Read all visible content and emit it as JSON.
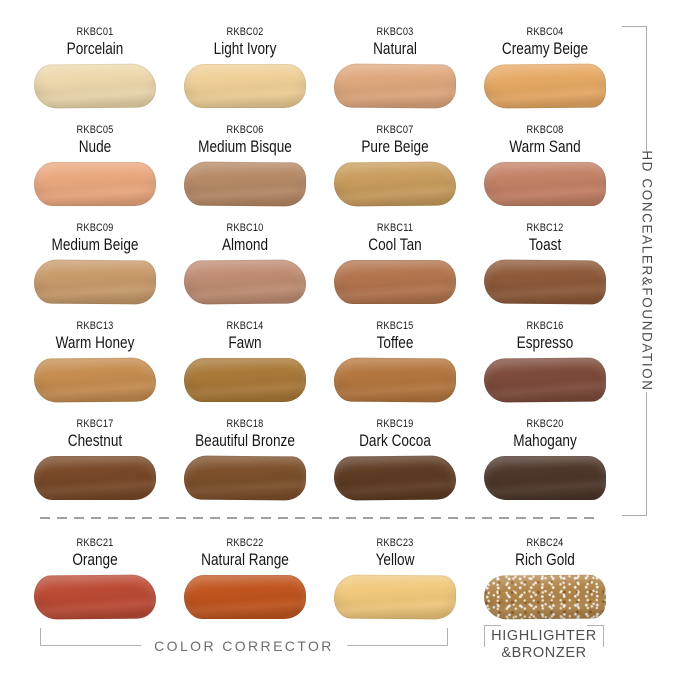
{
  "groups": {
    "right_bracket_label": "HD CONCEALER&FOUNDATION",
    "color_corrector_label": "COLOR CORRECTOR",
    "highlighter_label_line1": "HIGHLIGHTER",
    "highlighter_label_line2": "&BRONZER"
  },
  "colors": {
    "bracket_line": "#ababab",
    "divider_dash": "#a0a0a0",
    "swatch_text": "#1b1b1b",
    "group_text": "#4c4c4c",
    "corrector_text": "#6e6e6e",
    "background": "#ffffff"
  },
  "swatches": [
    {
      "code": "RKBC01",
      "name": "Porcelain",
      "color": "#EDD8AC"
    },
    {
      "code": "RKBC02",
      "name": "Light Ivory",
      "color": "#EFD098"
    },
    {
      "code": "RKBC03",
      "name": "Natural",
      "color": "#DFA87E"
    },
    {
      "code": "RKBC04",
      "name": "Creamy Beige",
      "color": "#E7A965"
    },
    {
      "code": "RKBC05",
      "name": "Nude",
      "color": "#EBA87F"
    },
    {
      "code": "RKBC06",
      "name": "Medium Bisque",
      "color": "#B78A66"
    },
    {
      "code": "RKBC07",
      "name": "Pure Beige",
      "color": "#C99D5D"
    },
    {
      "code": "RKBC08",
      "name": "Warm Sand",
      "color": "#C48166"
    },
    {
      "code": "RKBC09",
      "name": "Medium Beige",
      "color": "#C99B6C"
    },
    {
      "code": "RKBC10",
      "name": "Almond",
      "color": "#C08D74"
    },
    {
      "code": "RKBC11",
      "name": "Cool Tan",
      "color": "#B3754E"
    },
    {
      "code": "RKBC12",
      "name": "Toast",
      "color": "#8E5A3A"
    },
    {
      "code": "RKBC13",
      "name": "Warm Honey",
      "color": "#C68E50"
    },
    {
      "code": "RKBC14",
      "name": "Fawn",
      "color": "#A97938"
    },
    {
      "code": "RKBC15",
      "name": "Toffee",
      "color": "#B5773F"
    },
    {
      "code": "RKBC16",
      "name": "Espresso",
      "color": "#7E4B3B"
    },
    {
      "code": "RKBC17",
      "name": "Chestnut",
      "color": "#794928"
    },
    {
      "code": "RKBC18",
      "name": "Beautiful Bronze",
      "color": "#7D502B"
    },
    {
      "code": "RKBC19",
      "name": "Dark Cocoa",
      "color": "#5E3B23"
    },
    {
      "code": "RKBC20",
      "name": "Mahogany",
      "color": "#4E362A"
    },
    {
      "code": "RKBC21",
      "name": "Orange",
      "color": "#BC4B35"
    },
    {
      "code": "RKBC22",
      "name": "Natural Range",
      "color": "#C1551F"
    },
    {
      "code": "RKBC23",
      "name": "Yellow",
      "color": "#F2C97D"
    },
    {
      "code": "RKBC24",
      "name": "Rich Gold",
      "color": "#B1854B",
      "finish": "shimmer"
    }
  ]
}
